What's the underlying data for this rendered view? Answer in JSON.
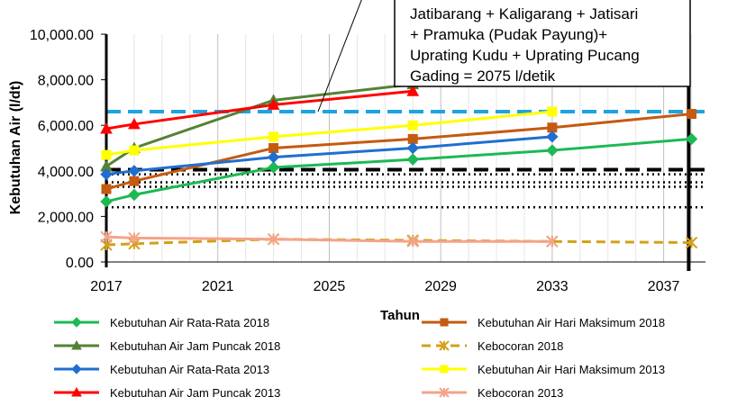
{
  "chart_data": {
    "type": "line",
    "xlabel": "Tahun",
    "ylabel": "Kebutuhan Air (l/dt)",
    "xlim": [
      2017,
      2038.5
    ],
    "ylim": [
      0,
      10000
    ],
    "x_ticks": [
      "2017",
      "2021",
      "2025",
      "2029",
      "2033",
      "2037"
    ],
    "y_ticks": [
      "0.00",
      "2,000.00",
      "4,000.00",
      "6,000.00",
      "8,000.00",
      "10,000.00"
    ],
    "grid": "vertical",
    "legend_position": "bottom",
    "annotation": {
      "lines": [
        "Jatibarang + Kaligarang + Jatisari",
        "+ Pramuka (Pudak Payung)+",
        "Uprating Kudu + Uprating Pucang",
        "Gading = 2075 l/detik"
      ]
    },
    "reference_lines": [
      {
        "y": 6600,
        "style": "dash",
        "color": "#1fa3e0"
      },
      {
        "y": 4050,
        "style": "dash",
        "color": "#000000"
      },
      {
        "y": 3850,
        "style": "dot",
        "color": "#000000"
      },
      {
        "y": 3500,
        "style": "dot",
        "color": "#000000"
      },
      {
        "y": 3300,
        "style": "dot",
        "color": "#000000"
      },
      {
        "y": 2400,
        "style": "dot",
        "color": "#000000"
      }
    ],
    "vertical_line": {
      "x": 2037.9
    },
    "series": [
      {
        "name": "Kebutuhan Air Rata-Rata 2018",
        "color": "#1db954",
        "marker": "diamond",
        "dash": "solid",
        "x": [
          2017,
          2018,
          2023,
          2028,
          2033,
          2038
        ],
        "y": [
          2650,
          2950,
          4150,
          4500,
          4900,
          5400
        ]
      },
      {
        "name": "Kebutuhan Air Hari Maksimum 2018",
        "color": "#c55a11",
        "marker": "square",
        "dash": "solid",
        "x": [
          2017,
          2018,
          2023,
          2028,
          2033,
          2038
        ],
        "y": [
          3200,
          3550,
          5000,
          5400,
          5900,
          6500
        ]
      },
      {
        "name": "Kebutuhan Air Jam Puncak 2018",
        "color": "#548235",
        "marker": "triangle",
        "dash": "solid",
        "x": [
          2017,
          2018,
          2023,
          2028
        ],
        "y": [
          4200,
          5000,
          7100,
          7800
        ]
      },
      {
        "name": "Kebocoran 2018",
        "color": "#d4a017",
        "marker": "star",
        "dash": "dash",
        "x": [
          2017,
          2018,
          2023,
          2028,
          2033,
          2038
        ],
        "y": [
          750,
          800,
          1000,
          950,
          900,
          850
        ]
      },
      {
        "name": "Kebutuhan Air Rata-Rata 2013",
        "color": "#1f6fd1",
        "marker": "diamond",
        "dash": "solid",
        "x": [
          2017,
          2018,
          2023,
          2028,
          2033
        ],
        "y": [
          3850,
          4000,
          4600,
          5000,
          5500
        ]
      },
      {
        "name": "Kebutuhan Air Hari Maksimum 2013",
        "color": "#ffff00",
        "marker": "square",
        "dash": "solid",
        "x": [
          2017,
          2018,
          2023,
          2028,
          2033
        ],
        "y": [
          4700,
          4900,
          5500,
          6000,
          6600
        ]
      },
      {
        "name": "Kebutuhan Air Jam Puncak 2013",
        "color": "#ff0000",
        "marker": "triangle",
        "dash": "solid",
        "x": [
          2017,
          2018,
          2023,
          2028
        ],
        "y": [
          5850,
          6050,
          6900,
          7500
        ]
      },
      {
        "name": "Kebocoran 2013",
        "color": "#f4a48a",
        "marker": "star",
        "dash": "solid",
        "x": [
          2017,
          2018,
          2023,
          2028,
          2033
        ],
        "y": [
          1100,
          1050,
          1000,
          900,
          900
        ]
      }
    ]
  }
}
